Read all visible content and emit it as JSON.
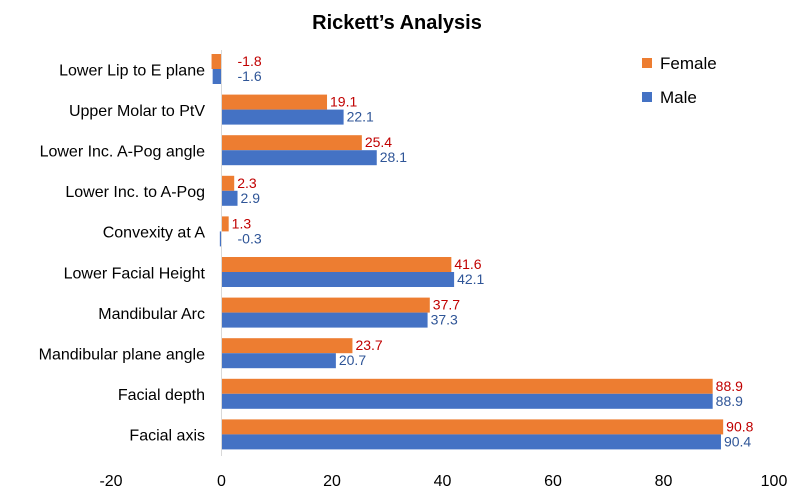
{
  "chart_data": {
    "type": "bar",
    "orientation": "horizontal",
    "title": "Rickett’s Analysis",
    "categories": [
      "Lower Lip to E plane",
      "Upper Molar to PtV",
      "Lower Inc. A-Pog angle",
      "Lower Inc. to A-Pog",
      "Convexity at A",
      "Lower Facial Height",
      "Mandibular Arc",
      "Mandibular plane angle",
      "Facial depth",
      "Facial axis"
    ],
    "series": [
      {
        "name": "Female",
        "color": "#ED7D31",
        "label_color": "#C00000",
        "values": [
          -1.8,
          19.1,
          25.4,
          2.3,
          1.3,
          41.6,
          37.7,
          23.7,
          88.9,
          90.8
        ]
      },
      {
        "name": "Male",
        "color": "#4472C4",
        "label_color": "#2F5597",
        "values": [
          -1.6,
          22.1,
          28.1,
          2.9,
          -0.3,
          42.1,
          37.3,
          20.7,
          88.9,
          90.4
        ]
      }
    ],
    "xlim": [
      -20,
      100
    ],
    "xticks": [
      "-20",
      "0",
      "20",
      "40",
      "60",
      "80",
      "100"
    ],
    "grid": false,
    "legend_position": "top-right"
  }
}
